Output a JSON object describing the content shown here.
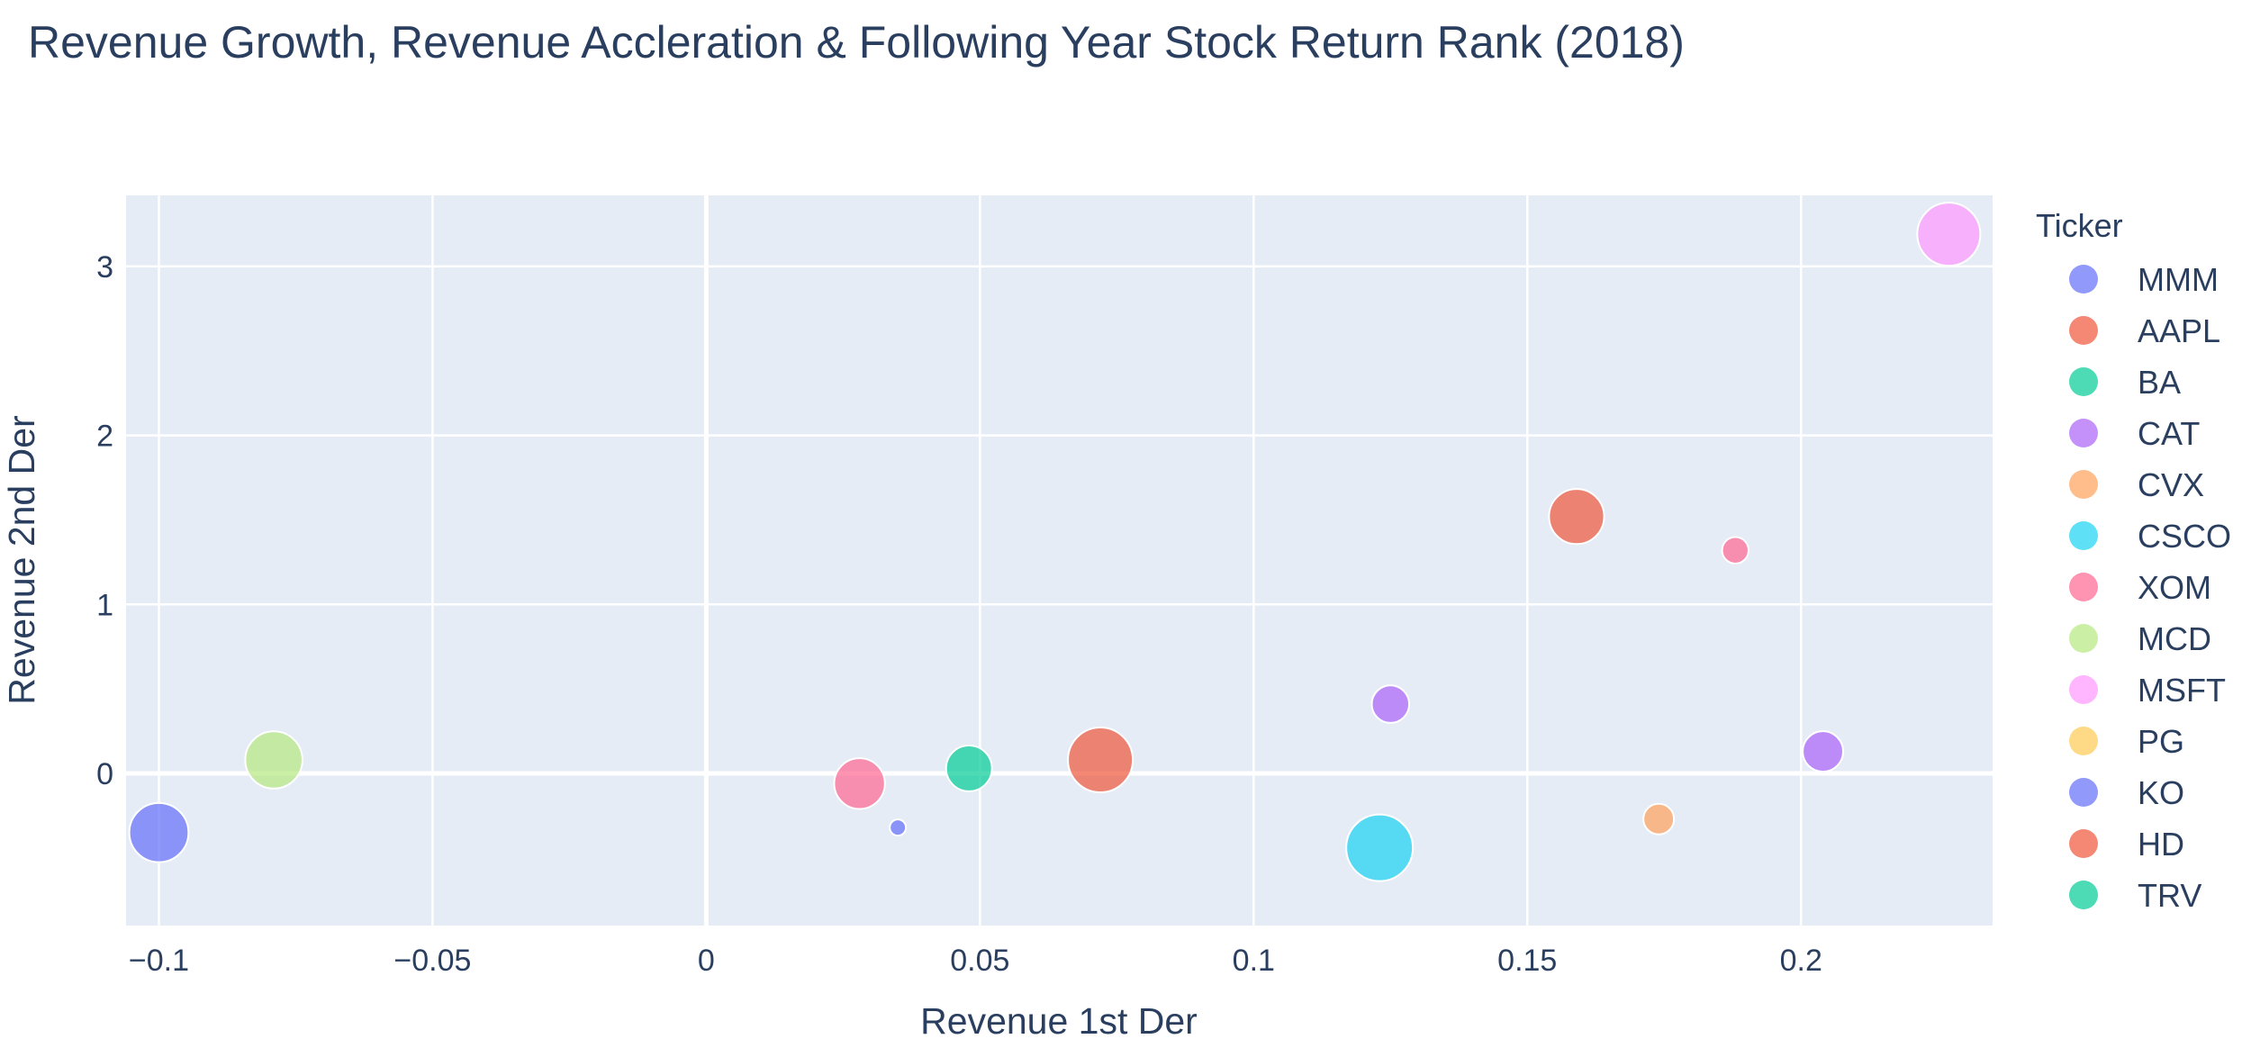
{
  "chart_data": {
    "type": "scatter",
    "title": "Revenue Growth, Revenue Accleration & Following Year Stock Return Rank (2018)",
    "xlabel": "Revenue 1st Der",
    "ylabel": "Revenue 2nd Der",
    "xlim": [
      -0.106,
      0.235
    ],
    "ylim": [
      -0.9,
      3.42
    ],
    "x_ticks": [
      -0.1,
      -0.05,
      0,
      0.05,
      0.1,
      0.15,
      0.2
    ],
    "x_tick_labels": [
      "−0.1",
      "−0.05",
      "0",
      "0.05",
      "0.1",
      "0.15",
      "0.2"
    ],
    "y_ticks": [
      0,
      1,
      2,
      3
    ],
    "y_tick_labels": [
      "0",
      "1",
      "2",
      "3"
    ],
    "grid": true,
    "legend_title": "Ticker",
    "legend_position": "right",
    "series": [
      {
        "name": "MMM",
        "color": "#636efa",
        "points": [
          {
            "x": 0.035,
            "y": -0.32,
            "size": 1
          }
        ]
      },
      {
        "name": "AAPL",
        "color": "#EF553B",
        "points": [
          {
            "x": 0.159,
            "y": 1.52,
            "size": 13
          }
        ]
      },
      {
        "name": "BA",
        "color": "#00cc96",
        "points": [
          {
            "x": 0.048,
            "y": 0.03,
            "size": 9
          }
        ]
      },
      {
        "name": "CAT",
        "color": "#ab63fa",
        "points": [
          {
            "x": 0.125,
            "y": 0.41,
            "size": 6
          },
          {
            "x": 0.204,
            "y": 0.13,
            "size": 7
          }
        ]
      },
      {
        "name": "CVX",
        "color": "#FFA15A",
        "points": [
          {
            "x": 0.174,
            "y": -0.27,
            "size": 4
          }
        ]
      },
      {
        "name": "CSCO",
        "color": "#19d3f3",
        "points": [
          {
            "x": 0.123,
            "y": -0.44,
            "size": 19
          }
        ]
      },
      {
        "name": "XOM",
        "color": "#FF6692",
        "points": [
          {
            "x": 0.028,
            "y": -0.06,
            "size": 11
          },
          {
            "x": 0.188,
            "y": 1.32,
            "size": 3
          }
        ]
      },
      {
        "name": "MCD",
        "color": "#B6E880",
        "points": [
          {
            "x": -0.079,
            "y": 0.08,
            "size": 14
          }
        ]
      },
      {
        "name": "MSFT",
        "color": "#FF97FF",
        "points": [
          {
            "x": 0.227,
            "y": 3.19,
            "size": 17
          }
        ]
      },
      {
        "name": "PG",
        "color": "#FECB52",
        "points": []
      },
      {
        "name": "KO",
        "color": "#636efa",
        "points": [
          {
            "x": -0.1,
            "y": -0.35,
            "size": 15
          }
        ]
      },
      {
        "name": "HD",
        "color": "#EF553B",
        "points": [
          {
            "x": 0.072,
            "y": 0.08,
            "size": 18
          }
        ]
      },
      {
        "name": "TRV",
        "color": "#00cc96",
        "points": []
      }
    ]
  }
}
